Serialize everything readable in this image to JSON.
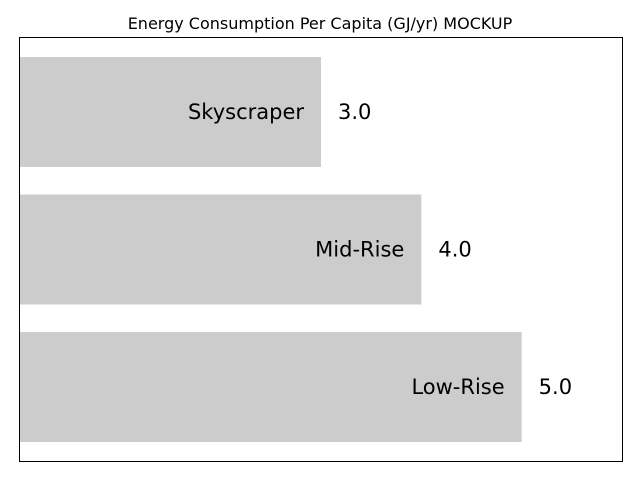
{
  "chart_data": {
    "type": "bar",
    "orientation": "horizontal",
    "title": "Energy Consumption Per Capita (GJ/yr) MOCKUP",
    "categories": [
      "Skyscraper",
      "Mid-Rise",
      "Low-Rise"
    ],
    "values": [
      3.0,
      4.0,
      5.0
    ],
    "value_labels": [
      "3.0",
      "4.0",
      "5.0"
    ],
    "xlim": [
      0,
      6.0
    ],
    "xlabel": "",
    "ylabel": "",
    "grid": false,
    "legend": "none",
    "bar_color": "#cccccc",
    "axis_ticks_visible": false
  }
}
